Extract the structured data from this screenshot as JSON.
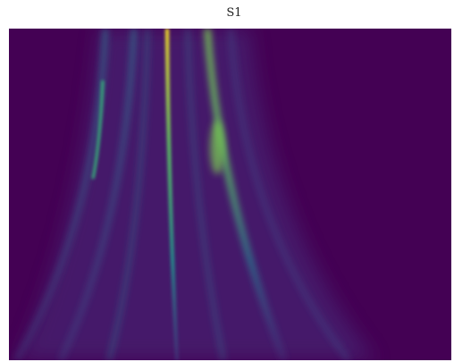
{
  "chart_data": {
    "type": "heatmap",
    "title": "S1"
  }
}
